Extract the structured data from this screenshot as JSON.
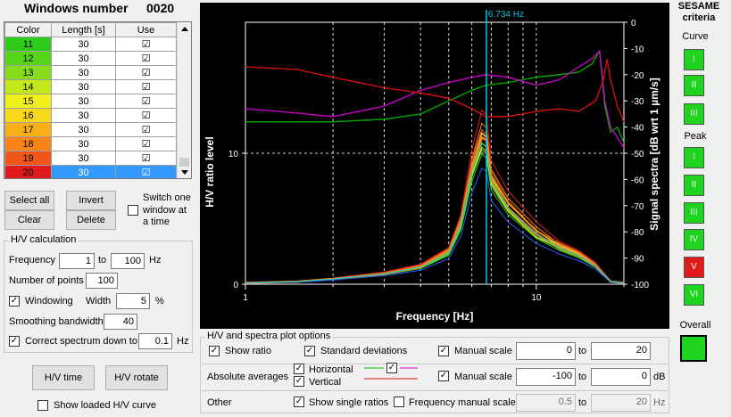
{
  "windows_panel": {
    "title": "Windows number",
    "count": "0020",
    "columns": [
      "Color",
      "Length [s]",
      "Use"
    ],
    "rows": [
      {
        "num": "11",
        "length": "30",
        "use": "☑",
        "color": "#2ecc1a"
      },
      {
        "num": "12",
        "length": "30",
        "use": "☑",
        "color": "#55d41a"
      },
      {
        "num": "13",
        "length": "30",
        "use": "☑",
        "color": "#86dc1a"
      },
      {
        "num": "14",
        "length": "30",
        "use": "☑",
        "color": "#c0e81a"
      },
      {
        "num": "15",
        "length": "30",
        "use": "☑",
        "color": "#f0f01a"
      },
      {
        "num": "16",
        "length": "30",
        "use": "☑",
        "color": "#f8d81a"
      },
      {
        "num": "17",
        "length": "30",
        "use": "☑",
        "color": "#f8b01a"
      },
      {
        "num": "18",
        "length": "30",
        "use": "☑",
        "color": "#f8841a"
      },
      {
        "num": "19",
        "length": "30",
        "use": "☑",
        "color": "#f0561a"
      },
      {
        "num": "20",
        "length": "30",
        "use": "☑",
        "color": "#e01a1a"
      }
    ],
    "selected_row": "20"
  },
  "window_buttons": {
    "select_all": "Select all",
    "invert": "Invert",
    "clear": "Clear",
    "delete": "Delete",
    "switch_one_line1": "Switch one",
    "switch_one_line2": "window at",
    "switch_one_line3": "a time"
  },
  "hv_calc": {
    "group_title": "H/V calculation",
    "frequency_label": "Frequency",
    "freq_from": "1",
    "to_label": "to",
    "freq_to": "100",
    "hz_unit": "Hz",
    "points_label": "Number of points",
    "points": "100",
    "windowing_label": "Windowing",
    "windowing_checked": "✓",
    "width_label": "Width",
    "width": "5",
    "pct_unit": "%",
    "smoothing_label": "Smoothing bandwidth",
    "smoothing": "40",
    "correct_label": "Correct spectrum down to",
    "correct_checked": "✓",
    "correct_value": "0.1",
    "correct_unit": "Hz"
  },
  "action_buttons": {
    "hv_time": "H/V time",
    "hv_rotate": "H/V rotate",
    "show_loaded": "Show loaded H/V curve"
  },
  "plot": {
    "peak_label": "6.734 Hz",
    "left_axis_title": "H/V ratio level",
    "right_axis_title": "Signal spectra [dB wrt 1 µm/s]",
    "x_axis_title": "Frequency [Hz]",
    "left_ticks": [
      "10",
      "0"
    ],
    "right_ticks": [
      "0",
      "-10",
      "-20",
      "-30",
      "-40",
      "-50",
      "-60",
      "-70",
      "-80",
      "-90",
      "-100"
    ],
    "x_ticks": [
      "1",
      "10"
    ]
  },
  "chart_data": {
    "type": "line",
    "x_scale": "log",
    "xlim": [
      1,
      20
    ],
    "ylim_left": [
      0,
      20
    ],
    "ylim_right": [
      -100,
      0
    ],
    "xlabel": "Frequency [Hz]",
    "ylabel": "H/V ratio level",
    "y2label": "Signal spectra [dB wrt 1 µm/s]",
    "peak_frequency_hz": 6.734,
    "hv_curves": {
      "x": [
        1,
        1.5,
        2,
        3,
        4,
        5,
        5.5,
        6,
        6.5,
        6.734,
        7,
        8,
        10,
        12,
        14,
        16,
        18,
        20
      ],
      "base": [
        0.1,
        0.2,
        0.4,
        0.8,
        1.3,
        2.4,
        4.5,
        8.5,
        10.8,
        10.5,
        7.8,
        5.8,
        3.8,
        2.8,
        2.2,
        1.4,
        0.2,
        0.1
      ],
      "window_scale": [
        0.92,
        0.95,
        0.98,
        1.0,
        1.02,
        1.05,
        1.08,
        1.1,
        1.13,
        1.17
      ],
      "mean_bold": [
        0.1,
        0.2,
        0.4,
        0.8,
        1.3,
        2.5,
        4.8,
        8.8,
        11.2,
        11.0,
        8.0,
        5.8,
        3.8,
        2.8,
        2.2,
        1.4,
        0.2,
        0.1
      ]
    },
    "spectra": [
      {
        "component": "horizontal-1",
        "color": "#00b000",
        "x": [
          1,
          1.3,
          2,
          3,
          4,
          5,
          6,
          6.7,
          8,
          10,
          12,
          14,
          15.5,
          16.5,
          17.2,
          18,
          19,
          20
        ],
        "y": [
          -38,
          -38,
          -38,
          -37,
          -35,
          -30,
          -26,
          -24,
          -23,
          -21,
          -20,
          -19,
          -16,
          -11,
          -32,
          -42,
          -40,
          -46
        ]
      },
      {
        "component": "horizontal-2",
        "color": "#d000d0",
        "x": [
          1,
          1.3,
          2,
          3,
          4,
          5,
          6,
          6.7,
          8,
          10,
          12,
          14,
          15.5,
          16.5,
          17.2,
          18,
          19,
          20
        ],
        "y": [
          -33,
          -34,
          -36,
          -32,
          -26,
          -23,
          -21,
          -20,
          -21,
          -24,
          -22,
          -17,
          -14,
          -11,
          -30,
          -40,
          -44,
          -48
        ]
      },
      {
        "component": "vertical",
        "color": "#e01010",
        "x": [
          1,
          1.5,
          2,
          3,
          4,
          5,
          6,
          6.7,
          8,
          10,
          12,
          14,
          16,
          17,
          17.5,
          18,
          19,
          20
        ],
        "y": [
          -17,
          -18,
          -21,
          -25,
          -27,
          -29,
          -33,
          -36,
          -36,
          -34,
          -33,
          -34,
          -30,
          -22,
          -14,
          -22,
          -32,
          -38
        ]
      }
    ]
  },
  "sesame": {
    "title_line1": "SESAME",
    "title_line2": "criteria",
    "curve_label": "Curve",
    "curve_items": [
      {
        "label": "I",
        "status": "pass"
      },
      {
        "label": "II",
        "status": "pass"
      },
      {
        "label": "III",
        "status": "pass"
      }
    ],
    "peak_label": "Peak",
    "peak_items": [
      {
        "label": "I",
        "status": "pass"
      },
      {
        "label": "II",
        "status": "pass"
      },
      {
        "label": "III",
        "status": "pass"
      },
      {
        "label": "IV",
        "status": "pass"
      },
      {
        "label": "V",
        "status": "fail"
      },
      {
        "label": "VI",
        "status": "pass"
      }
    ],
    "overall_label": "Overall",
    "overall_status": "pass"
  },
  "plot_options": {
    "group_title": "H/V and spectra plot options",
    "show_ratio_label": "Show ratio",
    "show_ratio_checked": "✓",
    "std_dev_label": "Standard deviations",
    "std_dev_checked": "✓",
    "manual_scale_label": "Manual scale",
    "manual_scale1_checked": "✓",
    "scale1_from": "0",
    "scale1_to": "20",
    "to_label": "to",
    "abs_avg_label": "Absolute averages",
    "horizontal_label": "Horizontal",
    "horizontal_checked": "✓",
    "vertical_label": "Vertical",
    "vertical_checked": "✓",
    "mid_checked": "✓",
    "manual_scale2_checked": "✓",
    "scale2_from": "-100",
    "scale2_to": "0",
    "db_unit": "dB",
    "other_label": "Other",
    "single_ratios_label": "Show single ratios",
    "single_ratios_checked": "✓",
    "freq_manual_label": "Frequency manual scale",
    "scale3_from": "0.5",
    "scale3_to": "20",
    "hz_unit": "Hz",
    "colors": {
      "horizontal_1": "#00b000",
      "horizontal_2": "#d000d0",
      "vertical": "#e01010"
    }
  }
}
